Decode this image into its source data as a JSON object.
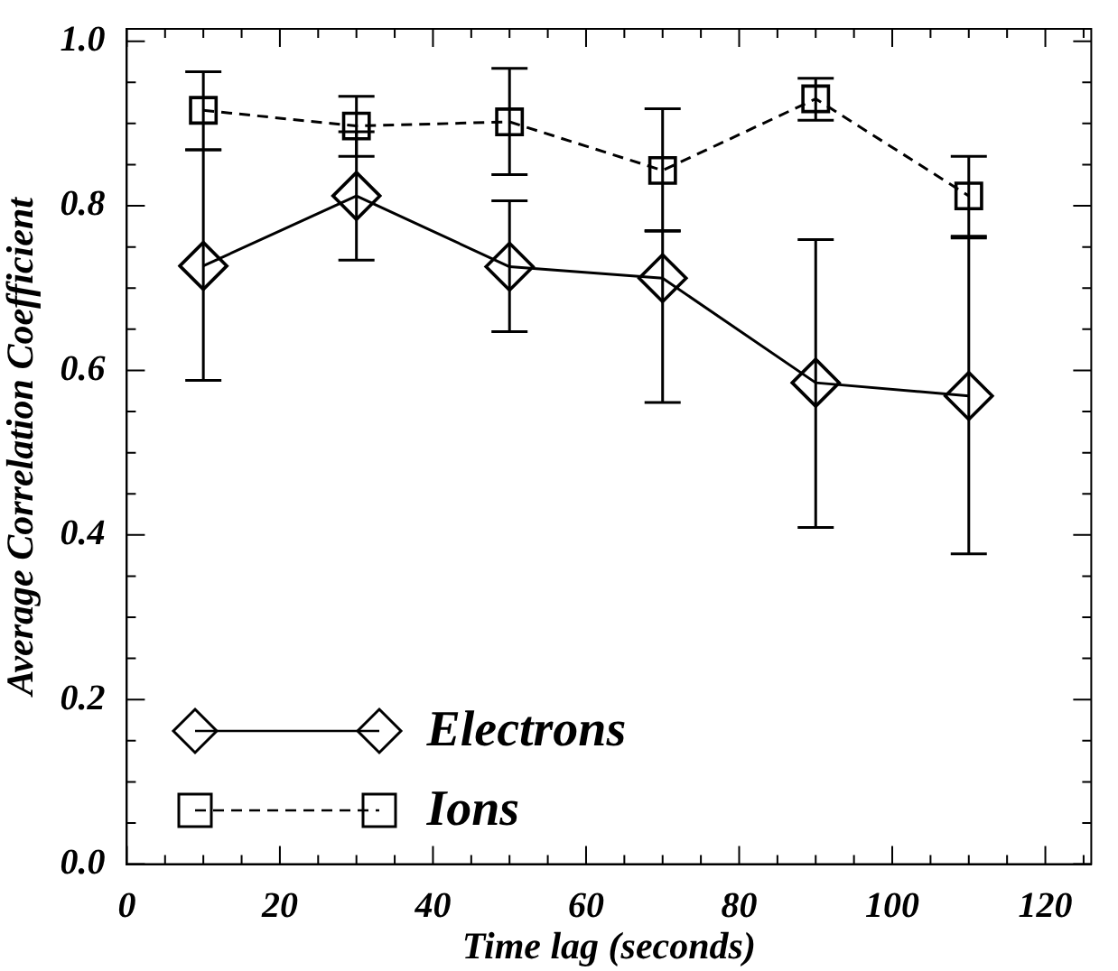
{
  "chart_data": {
    "type": "line",
    "xlabel": "Time lag (seconds)",
    "ylabel": "Average Correlation Coefficient",
    "x": [
      10,
      30,
      50,
      70,
      90,
      110
    ],
    "series": [
      {
        "name": "Electrons",
        "color": "#000000",
        "marker": "diamond",
        "line_style": "solid",
        "values": [
          0.727,
          0.812,
          0.726,
          0.712,
          0.585,
          0.569
        ],
        "errors": [
          [
            0.588,
            0.868
          ],
          [
            0.734,
            0.89
          ],
          [
            0.647,
            0.806
          ],
          [
            0.561,
            0.769
          ],
          [
            0.409,
            0.759
          ],
          [
            0.377,
            0.761
          ]
        ]
      },
      {
        "name": "Ions",
        "color": "#000000",
        "marker": "square",
        "line_style": "dashed",
        "values": [
          0.916,
          0.897,
          0.902,
          0.843,
          0.93,
          0.812
        ],
        "errors": [
          [
            0.868,
            0.963
          ],
          [
            0.86,
            0.933
          ],
          [
            0.838,
            0.967
          ],
          [
            0.77,
            0.918
          ],
          [
            0.904,
            0.955
          ],
          [
            0.763,
            0.86
          ]
        ]
      }
    ],
    "xlim": [
      0,
      126
    ],
    "xticks": [
      0,
      {
        "value": 5,
        "label": null
      },
      {
        "value": 10,
        "label": null
      },
      {
        "value": 15,
        "label": null
      },
      20,
      {
        "value": 25,
        "label": null
      },
      {
        "value": 30,
        "label": null
      },
      {
        "value": 35,
        "label": null
      },
      40,
      {
        "value": 45,
        "label": null
      },
      {
        "value": 50,
        "label": null
      },
      {
        "value": 55,
        "label": null
      },
      60,
      {
        "value": 65,
        "label": null
      },
      {
        "value": 70,
        "label": null
      },
      {
        "value": 75,
        "label": null
      },
      80,
      {
        "value": 85,
        "label": null
      },
      {
        "value": 90,
        "label": null
      },
      {
        "value": 95,
        "label": null
      },
      100,
      {
        "value": 105,
        "label": null
      },
      {
        "value": 110,
        "label": null
      },
      {
        "value": 115,
        "label": null
      },
      120,
      {
        "value": 125,
        "label": null
      }
    ],
    "ylim": [
      0,
      1.015
    ],
    "yticks": [
      {
        "value": 0,
        "label": "0.0"
      },
      {
        "value": 0.05,
        "label": null
      },
      {
        "value": 0.1,
        "label": null
      },
      {
        "value": 0.15,
        "label": null
      },
      {
        "value": 0.2,
        "label": "0.2"
      },
      {
        "value": 0.25,
        "label": null
      },
      {
        "value": 0.3,
        "label": null
      },
      {
        "value": 0.35,
        "label": null
      },
      {
        "value": 0.4,
        "label": "0.4"
      },
      {
        "value": 0.45,
        "label": null
      },
      {
        "value": 0.5,
        "label": null
      },
      {
        "value": 0.55,
        "label": null
      },
      {
        "value": 0.6,
        "label": "0.6"
      },
      {
        "value": 0.65,
        "label": null
      },
      {
        "value": 0.7,
        "label": null
      },
      {
        "value": 0.75,
        "label": null
      },
      {
        "value": 0.8,
        "label": "0.8"
      },
      {
        "value": 0.85,
        "label": null
      },
      {
        "value": 0.9,
        "label": null
      },
      {
        "value": 0.95,
        "label": null
      },
      {
        "value": 1.0,
        "label": "1.0"
      }
    ],
    "grid": false,
    "legend": "bottom left"
  }
}
